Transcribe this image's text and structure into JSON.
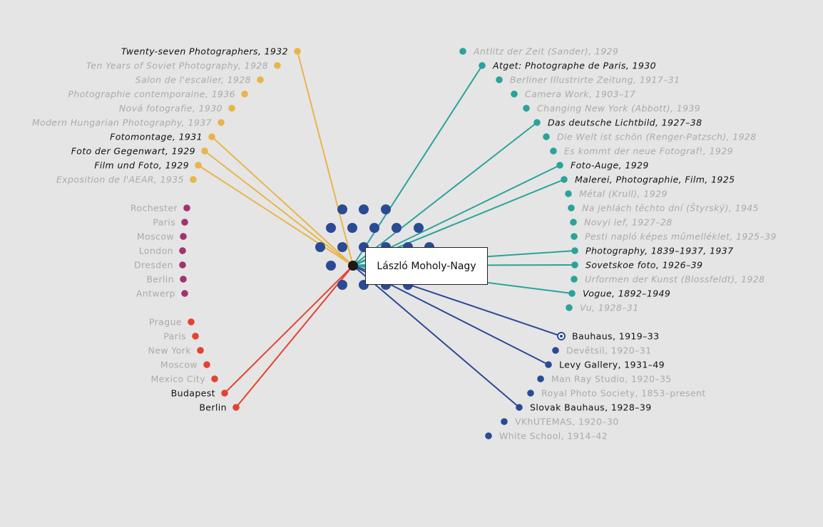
{
  "center": {
    "label": "László Moholy-Nagy"
  },
  "colors": {
    "background": "#e5e5e5",
    "publications": "#e8b54a",
    "cities_exhibit": "#a3326f",
    "cities_lived": "#e44232",
    "periodicals": "#2aa39a",
    "institutions": "#2b4a94",
    "dim_text": "#aaaaaa",
    "highlight_text": "#111111"
  },
  "groups": [
    {
      "id": "publications",
      "items": [
        {
          "label": "Twenty-seven Photographers, 1932",
          "highlight": true
        },
        {
          "label": "Ten Years of Soviet Photography, 1928",
          "highlight": false
        },
        {
          "label": "Salon de l'escalier, 1928",
          "highlight": false
        },
        {
          "label": "Photographie contemporaine, 1936",
          "highlight": false
        },
        {
          "label": "Nová fotografie, 1930",
          "highlight": false
        },
        {
          "label": "Modern Hungarian Photography, 1937",
          "highlight": false
        },
        {
          "label": "Fotomontage, 1931",
          "highlight": true
        },
        {
          "label": "Foto der Gegenwart, 1929",
          "highlight": true
        },
        {
          "label": "Film und Foto, 1929",
          "highlight": true
        },
        {
          "label": "Exposition de l'AEAR, 1935",
          "highlight": false
        }
      ]
    },
    {
      "id": "cities_exhibit",
      "items": [
        {
          "label": "Rochester",
          "highlight": false
        },
        {
          "label": "Paris",
          "highlight": false
        },
        {
          "label": "Moscow",
          "highlight": false
        },
        {
          "label": "London",
          "highlight": false
        },
        {
          "label": "Dresden",
          "highlight": false
        },
        {
          "label": "Berlin",
          "highlight": false
        },
        {
          "label": "Antwerp",
          "highlight": false
        }
      ]
    },
    {
      "id": "cities_lived",
      "items": [
        {
          "label": "Prague",
          "highlight": false
        },
        {
          "label": "Paris",
          "highlight": false
        },
        {
          "label": "New York",
          "highlight": false
        },
        {
          "label": "Moscow",
          "highlight": false
        },
        {
          "label": "Mexico City",
          "highlight": false
        },
        {
          "label": "Budapest",
          "highlight": true
        },
        {
          "label": "Berlin",
          "highlight": true
        }
      ]
    },
    {
      "id": "periodicals",
      "items": [
        {
          "label": "Antlitz der Zeit (Sander), 1929",
          "highlight": false
        },
        {
          "label": "Atget: Photographe de Paris, 1930",
          "highlight": true
        },
        {
          "label": "Berliner Illustrirte Zeitung, 1917–31",
          "highlight": false
        },
        {
          "label": "Camera Work, 1903–17",
          "highlight": false
        },
        {
          "label": "Changing New York (Abbott), 1939",
          "highlight": false
        },
        {
          "label": "Das deutsche Lichtbild, 1927–38",
          "highlight": true
        },
        {
          "label": "Die Welt ist schön (Renger-Patzsch), 1928",
          "highlight": false
        },
        {
          "label": "Es kommt der neue Fotograf!, 1929",
          "highlight": false
        },
        {
          "label": "Foto-Auge, 1929",
          "highlight": true
        },
        {
          "label": "Malerei, Photographie, Film, 1925",
          "highlight": true
        },
        {
          "label": "Métal (Krull), 1929",
          "highlight": false
        },
        {
          "label": "Na jehlách těchto dní (Štyrský), 1945",
          "highlight": false
        },
        {
          "label": "Novyi lef, 1927–28",
          "highlight": false
        },
        {
          "label": "Pesti napló képes műmelléklet, 1925–39",
          "highlight": false
        },
        {
          "label": "Photography, 1839–1937, 1937",
          "highlight": true
        },
        {
          "label": "Sovetskoe foto, 1926–39",
          "highlight": true
        },
        {
          "label": "Urformen der Kunst (Blossfeldt), 1928",
          "highlight": false
        },
        {
          "label": "Vogue, 1892–1949",
          "highlight": true
        },
        {
          "label": "Vu, 1928–31",
          "highlight": false
        }
      ]
    },
    {
      "id": "institutions",
      "items": [
        {
          "label": "Bauhaus, 1919–33",
          "highlight": true,
          "ring": true
        },
        {
          "label": "Devětsil, 1920–31",
          "highlight": false
        },
        {
          "label": "Levy Gallery, 1931–49",
          "highlight": true
        },
        {
          "label": "Man Ray Studio, 1920–35",
          "highlight": false
        },
        {
          "label": "Royal Photo Society, 1853–present",
          "highlight": false
        },
        {
          "label": "Slovak Bauhaus, 1928–39",
          "highlight": true
        },
        {
          "label": "VKhUTEMAS, 1920–30",
          "highlight": false
        },
        {
          "label": "White School, 1914–42",
          "highlight": false
        }
      ]
    }
  ]
}
